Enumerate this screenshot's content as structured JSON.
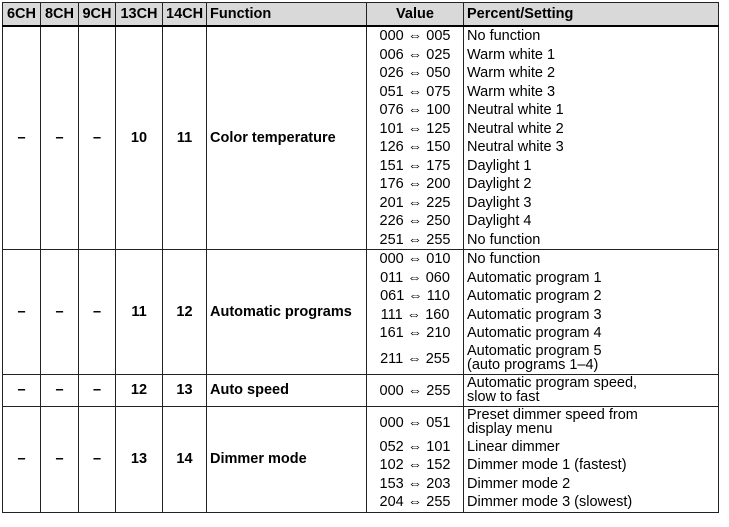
{
  "headers": [
    "6CH",
    "8CH",
    "9CH",
    "13CH",
    "14CH",
    "Function",
    "Value",
    "Percent/Setting"
  ],
  "rows": [
    {
      "ch6": "–",
      "ch8": "–",
      "ch9": "–",
      "ch13": "10",
      "ch14": "11",
      "function": "Color temperature",
      "entries": [
        {
          "value": "000 ⇔ 005",
          "setting": [
            "No function"
          ]
        },
        {
          "value": "006 ⇔ 025",
          "setting": [
            "Warm white 1"
          ]
        },
        {
          "value": "026 ⇔ 050",
          "setting": [
            "Warm white 2"
          ]
        },
        {
          "value": "051 ⇔ 075",
          "setting": [
            "Warm white 3"
          ]
        },
        {
          "value": "076 ⇔ 100",
          "setting": [
            "Neutral white 1"
          ]
        },
        {
          "value": "101 ⇔ 125",
          "setting": [
            "Neutral white 2"
          ]
        },
        {
          "value": "126 ⇔ 150",
          "setting": [
            "Neutral white 3"
          ]
        },
        {
          "value": "151 ⇔ 175",
          "setting": [
            "Daylight 1"
          ]
        },
        {
          "value": "176 ⇔ 200",
          "setting": [
            "Daylight 2"
          ]
        },
        {
          "value": "201 ⇔ 225",
          "setting": [
            "Daylight 3"
          ]
        },
        {
          "value": "226 ⇔ 250",
          "setting": [
            "Daylight 4"
          ]
        },
        {
          "value": "251 ⇔ 255",
          "setting": [
            "No function"
          ]
        }
      ]
    },
    {
      "ch6": "–",
      "ch8": "–",
      "ch9": "–",
      "ch13": "11",
      "ch14": "12",
      "function": "Automatic programs",
      "entries": [
        {
          "value": "000 ⇔ 010",
          "setting": [
            "No function"
          ]
        },
        {
          "value": "011 ⇔ 060",
          "setting": [
            "Automatic program 1"
          ]
        },
        {
          "value": "061 ⇔ 110",
          "setting": [
            "Automatic program 2"
          ]
        },
        {
          "value": "111 ⇔ 160",
          "setting": [
            "Automatic program 3"
          ]
        },
        {
          "value": "161 ⇔ 210",
          "setting": [
            "Automatic program 4"
          ]
        },
        {
          "value": "211 ⇔ 255",
          "setting": [
            "Automatic program 5",
            "(auto programs 1–4)"
          ]
        }
      ]
    },
    {
      "ch6": "–",
      "ch8": "–",
      "ch9": "–",
      "ch13": "12",
      "ch14": "13",
      "function": "Auto speed",
      "entries": [
        {
          "value": "000 ⇔ 255",
          "setting": [
            "Automatic program speed,",
            "slow to fast"
          ]
        }
      ]
    },
    {
      "ch6": "–",
      "ch8": "–",
      "ch9": "–",
      "ch13": "13",
      "ch14": "14",
      "function": "Dimmer mode",
      "entries": [
        {
          "value": "000 ⇔ 051",
          "setting": [
            "Preset dimmer speed from",
            "display menu"
          ]
        },
        {
          "value": "052 ⇔ 101",
          "setting": [
            "Linear dimmer"
          ]
        },
        {
          "value": "102 ⇔ 152",
          "setting": [
            "Dimmer mode 1 (fastest)"
          ]
        },
        {
          "value": "153 ⇔ 203",
          "setting": [
            "Dimmer mode 2"
          ]
        },
        {
          "value": "204 ⇔ 255",
          "setting": [
            "Dimmer mode 3 (slowest)"
          ]
        }
      ]
    }
  ]
}
